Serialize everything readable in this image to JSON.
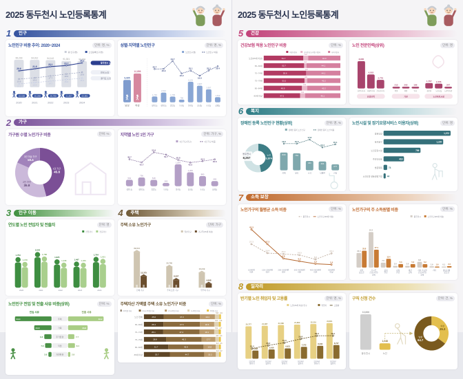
{
  "page_title": "2025 동두천시 노인등록통계",
  "sections": {
    "s1": {
      "num": "1",
      "name": "인구",
      "color": "#35539f",
      "light": "#c6d2ec"
    },
    "s2": {
      "num": "2",
      "name": "가구",
      "color": "#7b539b",
      "light": "#d9cce6"
    },
    "s3": {
      "num": "3",
      "name": "인구 이동",
      "color": "#3f8f3f",
      "light": "#cae3c4"
    },
    "s4": {
      "num": "4",
      "name": "주택",
      "color": "#6f5a38",
      "light": "#ddd2bd"
    },
    "s5": {
      "num": "5",
      "name": "건강",
      "color": "#c2437a",
      "light": "#ecc3d5"
    },
    "s6": {
      "num": "6",
      "name": "복지",
      "color": "#2f7d86",
      "light": "#c3dde0"
    },
    "s7": {
      "num": "7",
      "name": "소득 보장",
      "color": "#c06a2e",
      "light": "#ecd0b8"
    },
    "s8": {
      "num": "8",
      "name": "일자리",
      "color": "#c09a28",
      "light": "#ecdfae"
    }
  },
  "chart_data": [
    {
      "id": "elderly-share-trend",
      "type": "trend",
      "title": "노인인구 비중 추이: 2020~2024",
      "unit": "단위: 명, %",
      "legend": [
        "총 인구(명)",
        "노인등록인구(명)"
      ],
      "years": [
        "2020",
        "2021",
        "2022",
        "2023",
        "2024"
      ],
      "total": {
        "values": [
          95239,
          94912,
          94142,
          91301,
          90468
        ],
        "texts": [
          "95,239",
          "94,912",
          "94,142",
          "91,301",
          "90,468"
        ]
      },
      "elderly": {
        "texts": [
          "19,636",
          "20,268",
          "20,768",
          "21,607",
          "22,851"
        ]
      },
      "lines": [
        {
          "name": "동두천시 노인",
          "color": "#2c3f8f",
          "dash": "",
          "values": [
            20.6,
            21.8,
            23.1,
            23.7,
            25.2
          ]
        },
        {
          "name": "전국 노인",
          "color": "#8a93b5",
          "dash": "2 1.5",
          "values": [
            15.9,
            16.6,
            17.7,
            18.8,
            19.8
          ]
        },
        {
          "name": "경기도 노인",
          "color": "#b9c2dd",
          "dash": "2 1.5",
          "values": [
            13.1,
            13.9,
            14.7,
            15.6,
            16.4
          ]
        }
      ]
    },
    {
      "id": "elderly-by-gender-region",
      "type": "gender_region",
      "title": "성별·지역별 노인인구",
      "unit": "단위: 명, %",
      "legend": [
        "노인인구(명)",
        "노인인구 비중"
      ],
      "gender": {
        "labels": [
          "남성",
          "여성"
        ],
        "values": [
          9995,
          12856
        ],
        "texts": [
          "9,995",
          "12,856"
        ],
        "colors": [
          "#7f9cce",
          "#d6889f"
        ]
      },
      "regions": {
        "labels": [
          "생연1동",
          "생연2동",
          "중앙동",
          "보산동",
          "불현동",
          "송내동",
          "소요동",
          "상패동"
        ],
        "values": [
          1746,
          2912,
          1735,
          798,
          6191,
          4997,
          3907,
          1542
        ],
        "texts": [
          "1,746",
          "2,912",
          "1,735",
          "798",
          "6,191",
          "4,997",
          "3,907",
          "1,542"
        ],
        "share": [
          26.7,
          26.9,
          34.7,
          22.2,
          25.1,
          19.9,
          25.2,
          29.4
        ],
        "bar_color": "#89a6d4",
        "line_color": "#3c4c86"
      }
    },
    {
      "id": "household-size-donut",
      "type": "donut",
      "title": "가구원 수별 노인가구 비중",
      "unit": "단위: %",
      "slices": [
        {
          "label": "1인 가구",
          "value": 45.8,
          "color": "#7b4f96",
          "text_color": "#ffffff"
        },
        {
          "label": "2인 가구",
          "value": 35.8,
          "color": "#cbb9da",
          "text_color": "#5c4470"
        },
        {
          "label": "3인 이상 가구",
          "value": 18.4,
          "color": "#a183bb",
          "text_color": "#ffffff"
        }
      ]
    },
    {
      "id": "single-household-by-region",
      "type": "barline",
      "title": "지역별 노인 1인 가구",
      "unit": "단위: 가구, %",
      "legend": [
        "1인 가구(가구)",
        "1인 가구 비중"
      ],
      "labels": [
        "생연1동",
        "생연2동",
        "중앙동",
        "보산동",
        "불현동",
        "송내동",
        "소요동",
        "상패동"
      ],
      "values": [
        562,
        756,
        548,
        282,
        1897,
        1205,
        880,
        449
      ],
      "texts": [
        "562",
        "756",
        "548",
        "282",
        "1,897",
        "1,205",
        "880",
        "449"
      ],
      "line": [
        46.7,
        42.7,
        55.6,
        52.7,
        45.8,
        42.5,
        44.3,
        46.6
      ],
      "bar_color": "#b39fc6",
      "line_color": "#6b4f86",
      "label_color": "#9b87ae"
    },
    {
      "id": "in-out-migrants-by-year",
      "type": "groupbar",
      "title": "연도별 노인 전입자 및 전출자",
      "unit": "단위: 명",
      "labels": [
        [
          "2020"
        ],
        [
          "2021"
        ],
        [
          "2022"
        ],
        [
          "2023"
        ],
        [
          "2024"
        ]
      ],
      "series": [
        {
          "name": "전입자수",
          "color": "#3e8e41",
          "text_color": "#2f6f33",
          "values": [
            1753,
            2042,
            1625,
            1497,
            1764
          ],
          "texts": [
            "1,753",
            "2,042",
            "1,625",
            "1,497",
            "1,764"
          ]
        },
        {
          "name": "전출자수",
          "color": "#a9cf8d",
          "text_color": "#7fae66",
          "values": [
            1478,
            1788,
            1438,
            1433,
            1651
          ],
          "texts": [
            "1,478",
            "1,788",
            "1,438",
            "1,433",
            "1,651"
          ]
        }
      ],
      "person_bars": true,
      "show_values": true
    },
    {
      "id": "migration-reasons",
      "type": "butterfly",
      "title": "노인인구 전입 및 전출 사유 비중(상위)",
      "unit": "단위: %",
      "left_name": "전입 사유",
      "right_name": "전출 사유",
      "left_color": "#4a9147",
      "right_color": "#a9cd85",
      "rows": [
        {
          "label": "주택",
          "left": 44.4,
          "right": 43.2
        },
        {
          "label": "가족",
          "left": 21.0,
          "right": 23.8
        },
        {
          "label": "주거환경",
          "left": 8.8,
          "right": 7.7
        },
        {
          "label": "직업",
          "left": 7.8,
          "right": 8.4
        },
        {
          "label": "자연환경",
          "left": 3.8,
          "right": 2.8
        }
      ]
    },
    {
      "id": "home-owning-households",
      "type": "groupbar",
      "title": "주택 소유 노인가구",
      "unit": "단위: 가구",
      "labels": [
        [
          "전체 가구"
        ],
        [
          "주택 소유 가구"
        ],
        [
          "무주택 가구"
        ]
      ],
      "series": [
        {
          "name": "일반가구",
          "color": "#cfc5b1",
          "text_color": "#9a8f7a",
          "values": [
            39014,
            22765,
            16249
          ],
          "texts": [
            "39,014",
            "22,765",
            "16,249"
          ]
        },
        {
          "name": "가구주(65세 이상)",
          "color": "#6b4e2e",
          "text_color": "#5d4526",
          "values": [
            12375,
            8307,
            4068
          ],
          "texts": [
            "12,375",
            "8,307",
            "4,068"
          ]
        }
      ],
      "house_bars": true,
      "show_values": true
    },
    {
      "id": "housing-asset-bands",
      "type": "hstack",
      "title": "주택자산 가액별 주택 소유 노인가구 비중",
      "unit": "단위: %",
      "colors": [
        "#5d4526",
        "#8a6b3e",
        "#bb9a6c",
        "#e0d2b4",
        "#e9c33f"
      ],
      "legend": [
        "0.6억원 이하",
        "0.6~1.5억원 이하",
        "1.5~3억원 이하",
        "3~6억원 이하",
        "6억원 초과"
      ],
      "small_color": "#8a6b3e",
      "rows": [
        {
          "label": "노인 전체",
          "values": [
            25.6,
            47.3,
            19.4,
            5.8,
            2.0
          ]
        },
        {
          "label": "65~69세",
          "values": [
            25.3,
            47.5,
            18.6,
            6.0,
            2.6
          ]
        },
        {
          "label": "70~74세",
          "values": [
            25.1,
            47.2,
            19.1,
            5.9,
            2.7
          ]
        },
        {
          "label": "75~79세",
          "values": [
            28.8,
            46.3,
            17.7,
            4.8,
            2.4
          ]
        },
        {
          "label": "80~84세",
          "values": [
            31.7,
            45.8,
            15.8,
            4.4,
            2.3
          ]
        },
        {
          "label": "85세 이상",
          "values": [
            33.7,
            44.7,
            15.2,
            4.2,
            2.2
          ]
        }
      ]
    },
    {
      "id": "health-insurance-coverage",
      "type": "hstack",
      "title": "건강보험 적용 노인인구 비중",
      "unit": "단위: %",
      "colors": [
        "#b23a62",
        "#e9b7c9",
        "#d5809f"
      ],
      "legend": [
        "직장가입자",
        "공무원 및 교직원 가입자",
        "지역가입자"
      ],
      "small_color": "#c2648c",
      "rows": [
        {
          "label": "노인(65세 이상)",
          "values": [
            51.7,
            6.3,
            42.0
          ]
        },
        {
          "label": "65~69세",
          "values": [
            52.7,
            3.2,
            44.1
          ]
        },
        {
          "label": "70~74세",
          "values": [
            55.6,
            0.3,
            44.1
          ]
        },
        {
          "label": "75~79세",
          "values": [
            53.2,
            3.6,
            43.2
          ]
        },
        {
          "label": "80~84세",
          "values": [
            49.9,
            6.9,
            43.2
          ]
        },
        {
          "label": "85세 이상",
          "values": [
            47.5,
            6.4,
            46.1
          ]
        }
      ]
    },
    {
      "id": "elderly-care-workforce",
      "type": "groups3",
      "title": "노인 전문인력(상위)",
      "unit": "단위: 명",
      "bar_color": "#a8446c",
      "badge_bg": "#f6e3ea",
      "groups": [
        {
          "badge": "요양인력",
          "bars": [
            {
              "label": "요양보호사",
              "value": 8865,
              "text": "8,865"
            },
            {
              "label": "사회복지사",
              "value": 4552,
              "text": "4,552"
            },
            {
              "label": "간호조무사",
              "value": 2776,
              "text": "2,776"
            }
          ]
        },
        {
          "badge": "기관",
          "bars": [
            {
              "label": "병원",
              "value": 212,
              "text": "212"
            },
            {
              "label": "의원",
              "value": 205,
              "text": "205"
            },
            {
              "label": "약국",
              "value": 186,
              "text": "186"
            }
          ]
        },
        {
          "badge": "노인복지시설",
          "bars": [
            {
              "label": "경로당",
              "value": 1757,
              "text": "1,757"
            },
            {
              "label": "노인교실",
              "value": 1556,
              "text": "1,556"
            },
            {
              "label": "노인복지관",
              "value": 247,
              "text": "247"
            }
          ]
        }
      ]
    },
    {
      "id": "disabled-elderly",
      "type": "donut_barline",
      "title": "장애인 등록 노인인구 현황(상위)",
      "unit": "단위: 명, %",
      "legend": [
        "장애인 등록 노인 인구",
        "장애인 등록 노인 비중"
      ],
      "donut": {
        "total_label": "동두천시",
        "total_text": "8,257",
        "total_value": 8257,
        "part_label": "노인",
        "part_text": "3,874",
        "part_value": 3874,
        "part_color": "#3d7d85",
        "rest_color": "#cfe2e4"
      },
      "labels": [
        "지체",
        "청각",
        "시각",
        "뇌병변",
        "신장"
      ],
      "values": [
        818,
        781,
        431,
        404,
        277
      ],
      "texts": [
        "818",
        "781",
        "431",
        "404",
        "277"
      ],
      "line": [
        15.5,
        15.5,
        17.8,
        13.4,
        15.1
      ],
      "bar_color": "#7fa8ad",
      "line_color": "#2f6068"
    },
    {
      "id": "care-service-users",
      "type": "hbar",
      "title": "노인시설 및 장기요양서비스 이용자(상위)",
      "unit": "단위: 명",
      "bar_color": "#35707a",
      "rows": [
        {
          "label": "방문요양",
          "value": 1372,
          "text": "1,372"
        },
        {
          "label": "복지용구",
          "value": 1220,
          "text": "1,220"
        },
        {
          "label": "노인요양시설",
          "value": 756,
          "text": "756"
        },
        {
          "label": "주야간보호",
          "value": 418,
          "text": "418"
        },
        {
          "label": "방문목욕",
          "value": 74,
          "text": "74"
        },
        {
          "label": "노인요양 공동생활가정",
          "value": 44,
          "text": "44"
        }
      ]
    },
    {
      "id": "monthly-income-share",
      "type": "twoline",
      "title": "노인가구의 월평균 소득 비중",
      "unit": "단위: %",
      "labels": [
        [
          "100만원",
          "미만"
        ],
        [
          "100~200만원",
          "미만"
        ],
        [
          "200~300만원",
          "미만"
        ],
        [
          "300~400만원",
          "미만"
        ],
        [
          "400~500만원",
          "미만"
        ],
        [
          "500만원",
          "이상"
        ]
      ],
      "lines": [
        {
          "name": "동두천시",
          "color": "#b7a393",
          "dash": "2 1.5",
          "values": [
            27.3,
            16.4,
            15.3,
            14.0,
            8.8,
            16.1
          ]
        },
        {
          "name": "노인가구(65세 이상)",
          "color": "#b4662d",
          "dash": "",
          "values": [
            45.3,
            27.3,
            9.8,
            6.5,
            3.3,
            2.4
          ]
        }
      ]
    },
    {
      "id": "income-source-share",
      "type": "groupbar",
      "title": "노인가구의 주 소득원별 비중",
      "unit": "단위: %",
      "labels": [
        [
          "정부",
          "보조금"
        ],
        [
          "가구주",
          "근로(사업)",
          "소득"
        ],
        [
          "공적",
          "연금"
        ],
        [
          "사적",
          "연금"
        ],
        [
          "재산",
          "소득"
        ],
        [
          "기타 가구원",
          "근로(사업)",
          "소득"
        ],
        [
          "기타"
        ],
        [
          "종교단체",
          "보조금"
        ]
      ],
      "series": [
        {
          "name": "동두천시",
          "color": "#d4cdc6",
          "text_color": "#9a938c",
          "values": [
            22.4,
            54.4,
            7.5,
            2.6,
            2.6,
            8.8,
            1.9,
            0.1
          ],
          "texts": [
            "22.4",
            "54.4",
            "7.5",
            "2.6",
            "2.6",
            "8.8",
            "1.9",
            "0.1"
          ]
        },
        {
          "name": "노인가구(65세 이상)",
          "color": "#c87b35",
          "text_color": "#b06a25",
          "values": [
            25.8,
            27.4,
            13.4,
            5.3,
            5.3,
            5.2,
            1.6,
            2.2
          ],
          "texts": [
            "25.8",
            "27.4",
            "13.4",
            "5.3",
            "5.3",
            "5.2",
            "1.6",
            "2.2"
          ]
        }
      ],
      "show_values": true
    },
    {
      "id": "employment-by-half-year",
      "type": "groupbar",
      "title": "반기별 노인 취업자 및 고용률",
      "unit": "단위: 명, %",
      "labels": [
        [
          "2022년",
          "하반기"
        ],
        [
          "2023년",
          "상반기"
        ],
        [
          "2023년",
          "하반기"
        ],
        [
          "2024년",
          "상반기"
        ],
        [
          "2024년",
          "하반기"
        ],
        [
          "2025년",
          "상반기"
        ]
      ],
      "series": [
        {
          "name": "노인(65세 이상) 인구",
          "color": "#e7d083",
          "text_color": "#9a8a4a",
          "values": [
            20777,
            21087,
            21586,
            21862,
            22216,
            22801
          ],
          "texts": [
            "20,777",
            "21,087",
            "21,586",
            "21,862",
            "22,216",
            "22,801"
          ]
        },
        {
          "name": "취업자",
          "color": "#8a6b2f",
          "text_color": "#6b5420",
          "values": [
            5238,
            5916,
            6621,
            7572,
            8236,
            8727
          ],
          "texts": [
            "5,238",
            "5,916",
            "6,621",
            "7,572",
            "8,236",
            "8,727"
          ]
        }
      ],
      "line": {
        "name": "고용률",
        "color": "#5d4a1e",
        "values": [
          25.2,
          28.3,
          31.0,
          34.8,
          38.0,
          38.1
        ]
      },
      "show_values": true
    },
    {
      "id": "job-applications",
      "type": "jobseek",
      "title": "구직 신청 건수",
      "unit": "단위: 건, %",
      "bars": [
        {
          "label": "동두천시",
          "value": 10666,
          "text": "10,666",
          "color": "#cfcfcf",
          "text_color": "#999999"
        },
        {
          "label": "노인",
          "value": 1948,
          "text": "1,948",
          "color": "#e3bf4e",
          "text_color": "#8a6b2f"
        }
      ],
      "donut": [
        {
          "label": "여성",
          "value": 35.3,
          "color": "#e3bf4e",
          "text_color": "#6b5213"
        },
        {
          "label": "남성",
          "value": 64.7,
          "color": "#7a5a1e",
          "text_color": "#ffffff"
        }
      ]
    }
  ]
}
